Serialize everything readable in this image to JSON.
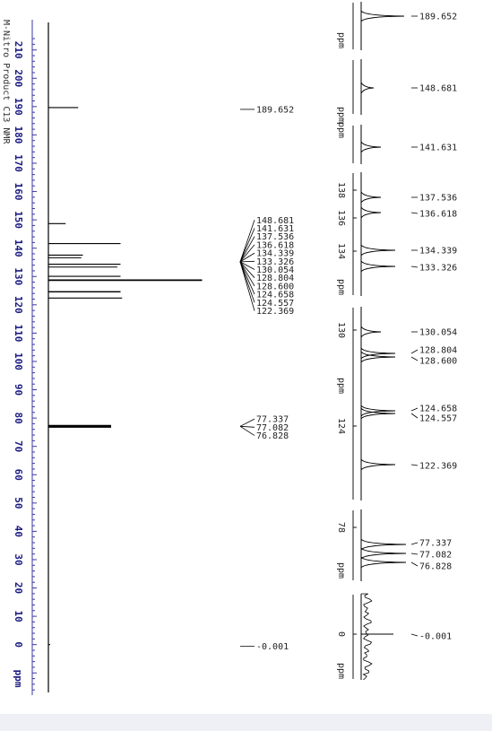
{
  "title": "M-Nitro Product C13 NMR",
  "axis_unit": "ppm",
  "main_ticks": [
    210,
    200,
    190,
    180,
    170,
    160,
    150,
    140,
    130,
    120,
    110,
    100,
    90,
    80,
    70,
    60,
    50,
    40,
    30,
    20,
    10,
    0
  ],
  "colors": {
    "axis_blue": "#3a3aa0",
    "line": "#000000",
    "background": "#ffffff",
    "footer": "#eef0f5"
  },
  "chart_data": {
    "type": "line",
    "title": "M-Nitro Product C13 NMR",
    "xlabel": "ppm",
    "xlim": [
      215,
      -8
    ],
    "grid": false,
    "peaks": [
      {
        "shift": 189.652,
        "intensity": 0.19
      },
      {
        "shift": 148.681,
        "intensity": 0.11
      },
      {
        "shift": 141.631,
        "intensity": 0.46
      },
      {
        "shift": 137.536,
        "intensity": 0.22
      },
      {
        "shift": 136.618,
        "intensity": 0.21
      },
      {
        "shift": 134.339,
        "intensity": 0.46
      },
      {
        "shift": 133.326,
        "intensity": 0.44
      },
      {
        "shift": 130.054,
        "intensity": 0.46
      },
      {
        "shift": 128.804,
        "intensity": 0.98
      },
      {
        "shift": 128.6,
        "intensity": 0.98
      },
      {
        "shift": 124.658,
        "intensity": 0.46
      },
      {
        "shift": 124.557,
        "intensity": 0.46
      },
      {
        "shift": 122.369,
        "intensity": 0.47
      },
      {
        "shift": 77.337,
        "intensity": 0.4
      },
      {
        "shift": 77.082,
        "intensity": 0.4
      },
      {
        "shift": 76.828,
        "intensity": 0.4
      },
      {
        "shift": -0.001,
        "intensity": 0.01
      }
    ],
    "peak_label_groups": [
      [
        "189.652"
      ],
      [
        "148.681",
        "141.631",
        "137.536",
        "136.618",
        "134.339",
        "133.326",
        "130.054",
        "128.804",
        "128.600",
        "124.658",
        "124.557",
        "122.369"
      ],
      [
        "77.337",
        "77.082",
        "76.828"
      ],
      [
        "-0.001"
      ]
    ],
    "insets": [
      {
        "ticks": [],
        "unit": "ppm",
        "peaks": [
          {
            "shift": 189.652,
            "label": "189.652"
          }
        ]
      },
      {
        "ticks": [],
        "unit": "ppm",
        "peaks": [
          {
            "shift": 148.681,
            "label": "148.681"
          }
        ]
      },
      {
        "ticks": [],
        "unit": "ppm",
        "peaks": [
          {
            "shift": 141.631,
            "label": "141.631"
          }
        ]
      },
      {
        "ticks": [
          "138",
          "136",
          "134"
        ],
        "unit": "ppm",
        "peaks": [
          {
            "shift": 137.536,
            "label": "137.536"
          },
          {
            "shift": 136.618,
            "label": "136.618"
          },
          {
            "shift": 134.339,
            "label": "134.339"
          },
          {
            "shift": 133.326,
            "label": "133.326"
          }
        ]
      },
      {
        "ticks": [
          "130",
          "124"
        ],
        "unit": "ppm",
        "peaks": [
          {
            "shift": 130.054,
            "label": "130.054"
          },
          {
            "shift": 128.804,
            "label": "128.804"
          },
          {
            "shift": 128.6,
            "label": "128.600"
          },
          {
            "shift": 124.658,
            "label": "124.658"
          },
          {
            "shift": 124.557,
            "label": "124.557"
          },
          {
            "shift": 122.369,
            "label": "122.369"
          }
        ]
      },
      {
        "ticks": [
          "78"
        ],
        "unit": "ppm",
        "peaks": [
          {
            "shift": 77.337,
            "label": "77.337"
          },
          {
            "shift": 77.082,
            "label": "77.082"
          },
          {
            "shift": 76.828,
            "label": "76.828"
          }
        ]
      },
      {
        "ticks": [
          "0"
        ],
        "unit": "ppm",
        "peaks": [
          {
            "shift": -0.001,
            "label": "-0.001"
          }
        ]
      }
    ]
  }
}
